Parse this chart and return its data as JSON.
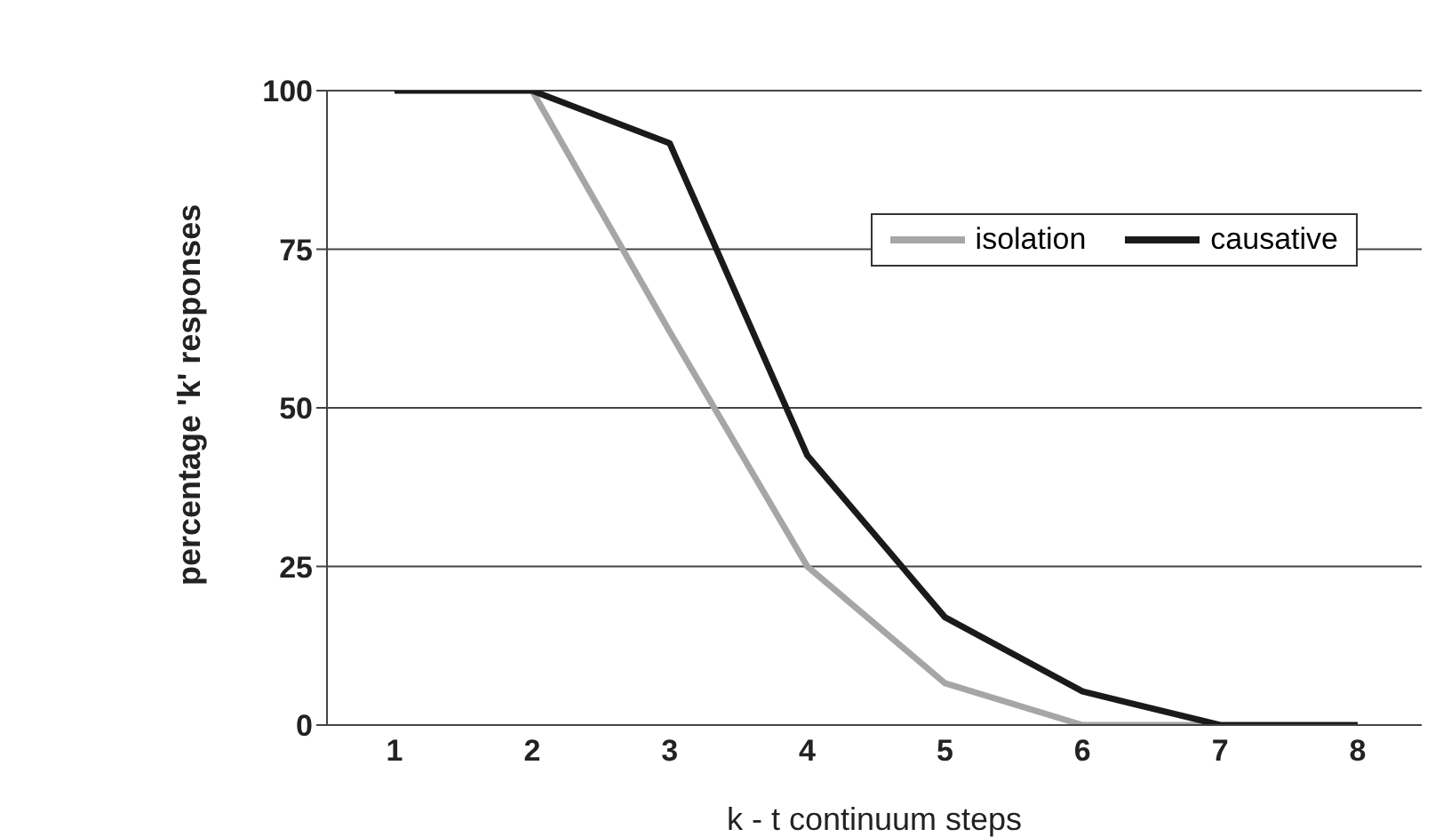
{
  "chart_data": {
    "type": "line",
    "xlabel": "k - t continuum steps",
    "ylabel": "percentage 'k' responses",
    "categories": [
      "1",
      "2",
      "3",
      "4",
      "5",
      "6",
      "7",
      "8"
    ],
    "series": [
      {
        "name": "isolation",
        "color": "#a6a6a6",
        "values": [
          null,
          100,
          62,
          25,
          6.6,
          0,
          0,
          null
        ]
      },
      {
        "name": "causative",
        "color": "#1a1a1a",
        "values": [
          100,
          100,
          91.7,
          42.5,
          17,
          5.3,
          0,
          0
        ]
      }
    ],
    "ylim": [
      0,
      100
    ],
    "yticks": [
      0,
      25,
      50,
      75,
      100
    ],
    "grid": "y",
    "legend": "top right",
    "marker": "none",
    "line_style": "solid"
  }
}
